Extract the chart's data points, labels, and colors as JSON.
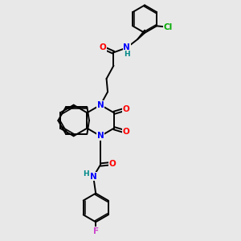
{
  "background_color": "#e8e8e8",
  "bond_color": "#000000",
  "atom_colors": {
    "N": "#0000ff",
    "O": "#ff0000",
    "Cl": "#00aa00",
    "F": "#cc44cc",
    "H": "#008888",
    "C": "#000000"
  },
  "figsize": [
    3.0,
    3.0
  ],
  "dpi": 100
}
